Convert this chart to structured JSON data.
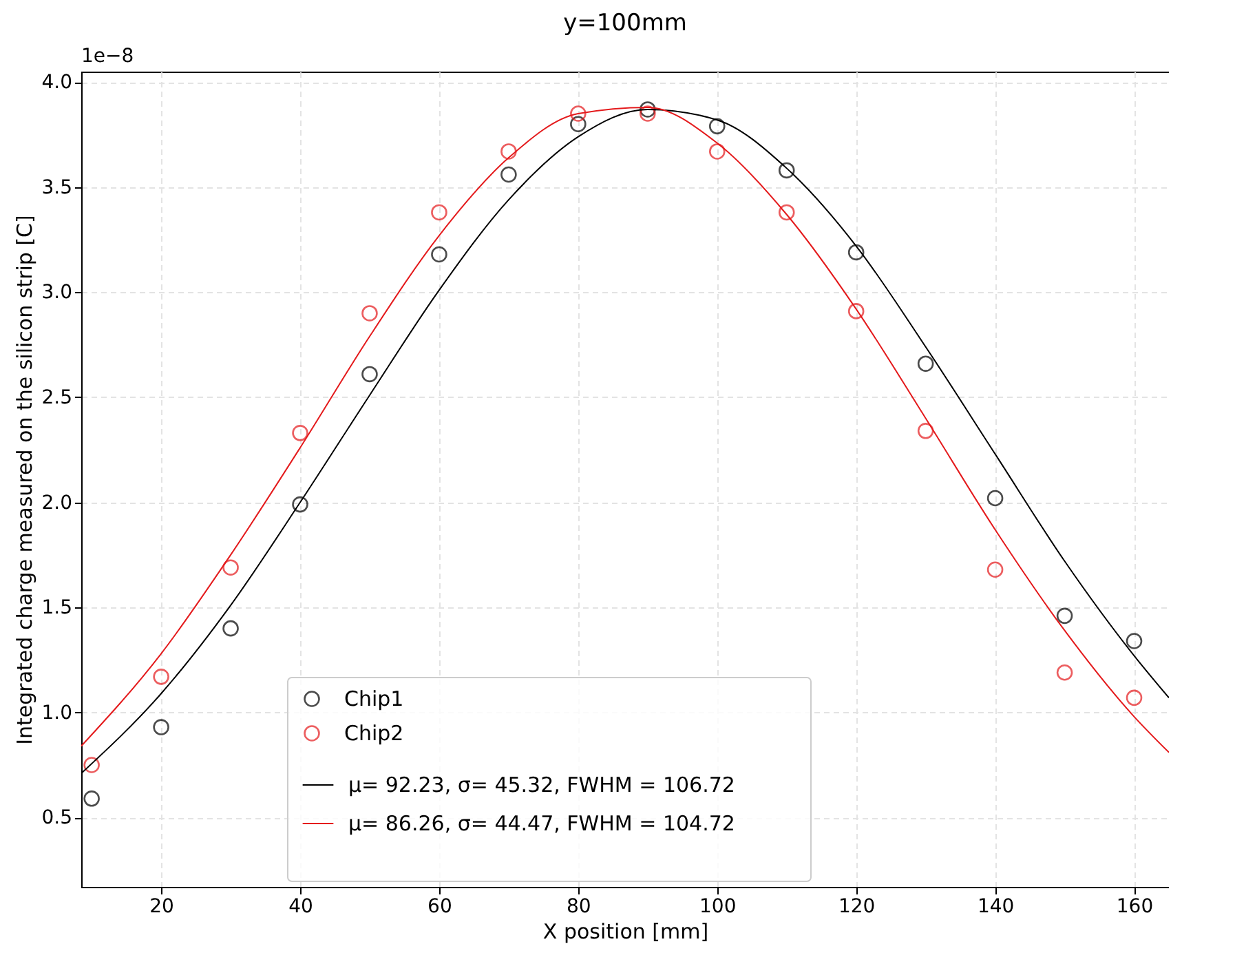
{
  "chart_data": {
    "type": "scatter",
    "title": "y=100mm",
    "xlabel": "X position [mm]",
    "ylabel": "Integrated charge measured on the silicon strip [C]",
    "annotations": [
      "1e−8"
    ],
    "xlim": [
      8.5,
      165
    ],
    "xticks": [
      20,
      40,
      60,
      80,
      100,
      120,
      140,
      160
    ],
    "ylim": [
      0.17,
      4.05
    ],
    "yticks": [
      {
        "value": 0.5,
        "label": "0.5"
      },
      {
        "value": 1,
        "label": "1.0"
      },
      {
        "value": 1.5,
        "label": "1.5"
      },
      {
        "value": 2,
        "label": "2.0"
      },
      {
        "value": 2.5,
        "label": "2.5"
      },
      {
        "value": 3,
        "label": "3.0"
      },
      {
        "value": 3.5,
        "label": "3.5"
      },
      {
        "value": 4,
        "label": "4.0"
      }
    ],
    "grid": true,
    "legend": "bottom",
    "series": [
      {
        "name": "Chip1",
        "marker": "circle",
        "color": "#000000",
        "x": [
          10,
          20,
          30,
          40,
          50,
          60,
          70,
          80,
          90,
          100,
          110,
          120,
          130,
          140,
          150,
          160
        ],
        "values": [
          0.59,
          0.93,
          1.4,
          1.99,
          2.61,
          3.18,
          3.56,
          3.8,
          3.87,
          3.79,
          3.58,
          3.19,
          2.66,
          2.02,
          1.46,
          1.34
        ]
      },
      {
        "name": "Chip2",
        "marker": "circle",
        "color": "#e41a1c",
        "x": [
          10,
          20,
          30,
          40,
          50,
          60,
          70,
          80,
          90,
          100,
          110,
          120,
          130,
          140,
          150,
          160
        ],
        "values": [
          0.75,
          1.17,
          1.69,
          2.33,
          2.9,
          3.38,
          3.67,
          3.85,
          3.85,
          3.67,
          3.38,
          2.91,
          2.34,
          1.68,
          1.19,
          1.07
        ]
      },
      {
        "name": "μ= 92.23, σ= 45.32, FWHM = 106.72",
        "type": "line",
        "color": "#000000",
        "x": [
          8.5,
          20,
          30,
          40,
          50,
          60,
          70,
          80,
          90,
          100,
          110,
          120,
          130,
          140,
          150,
          160,
          165
        ],
        "values": [
          0.71,
          1.09,
          1.51,
          2.0,
          2.51,
          3.01,
          3.44,
          3.74,
          3.87,
          3.82,
          3.59,
          3.22,
          2.74,
          2.23,
          1.72,
          1.27,
          1.07
        ]
      },
      {
        "name": "μ= 86.26, σ= 44.47, FWHM = 104.72",
        "type": "line",
        "color": "#e41a1c",
        "x": [
          8.5,
          20,
          30,
          40,
          50,
          60,
          70,
          80,
          90,
          100,
          110,
          120,
          130,
          140,
          150,
          160,
          165
        ],
        "values": [
          0.84,
          1.28,
          1.75,
          2.26,
          2.79,
          3.27,
          3.64,
          3.85,
          3.88,
          3.71,
          3.37,
          2.92,
          2.4,
          1.87,
          1.39,
          0.98,
          0.81
        ]
      }
    ]
  }
}
